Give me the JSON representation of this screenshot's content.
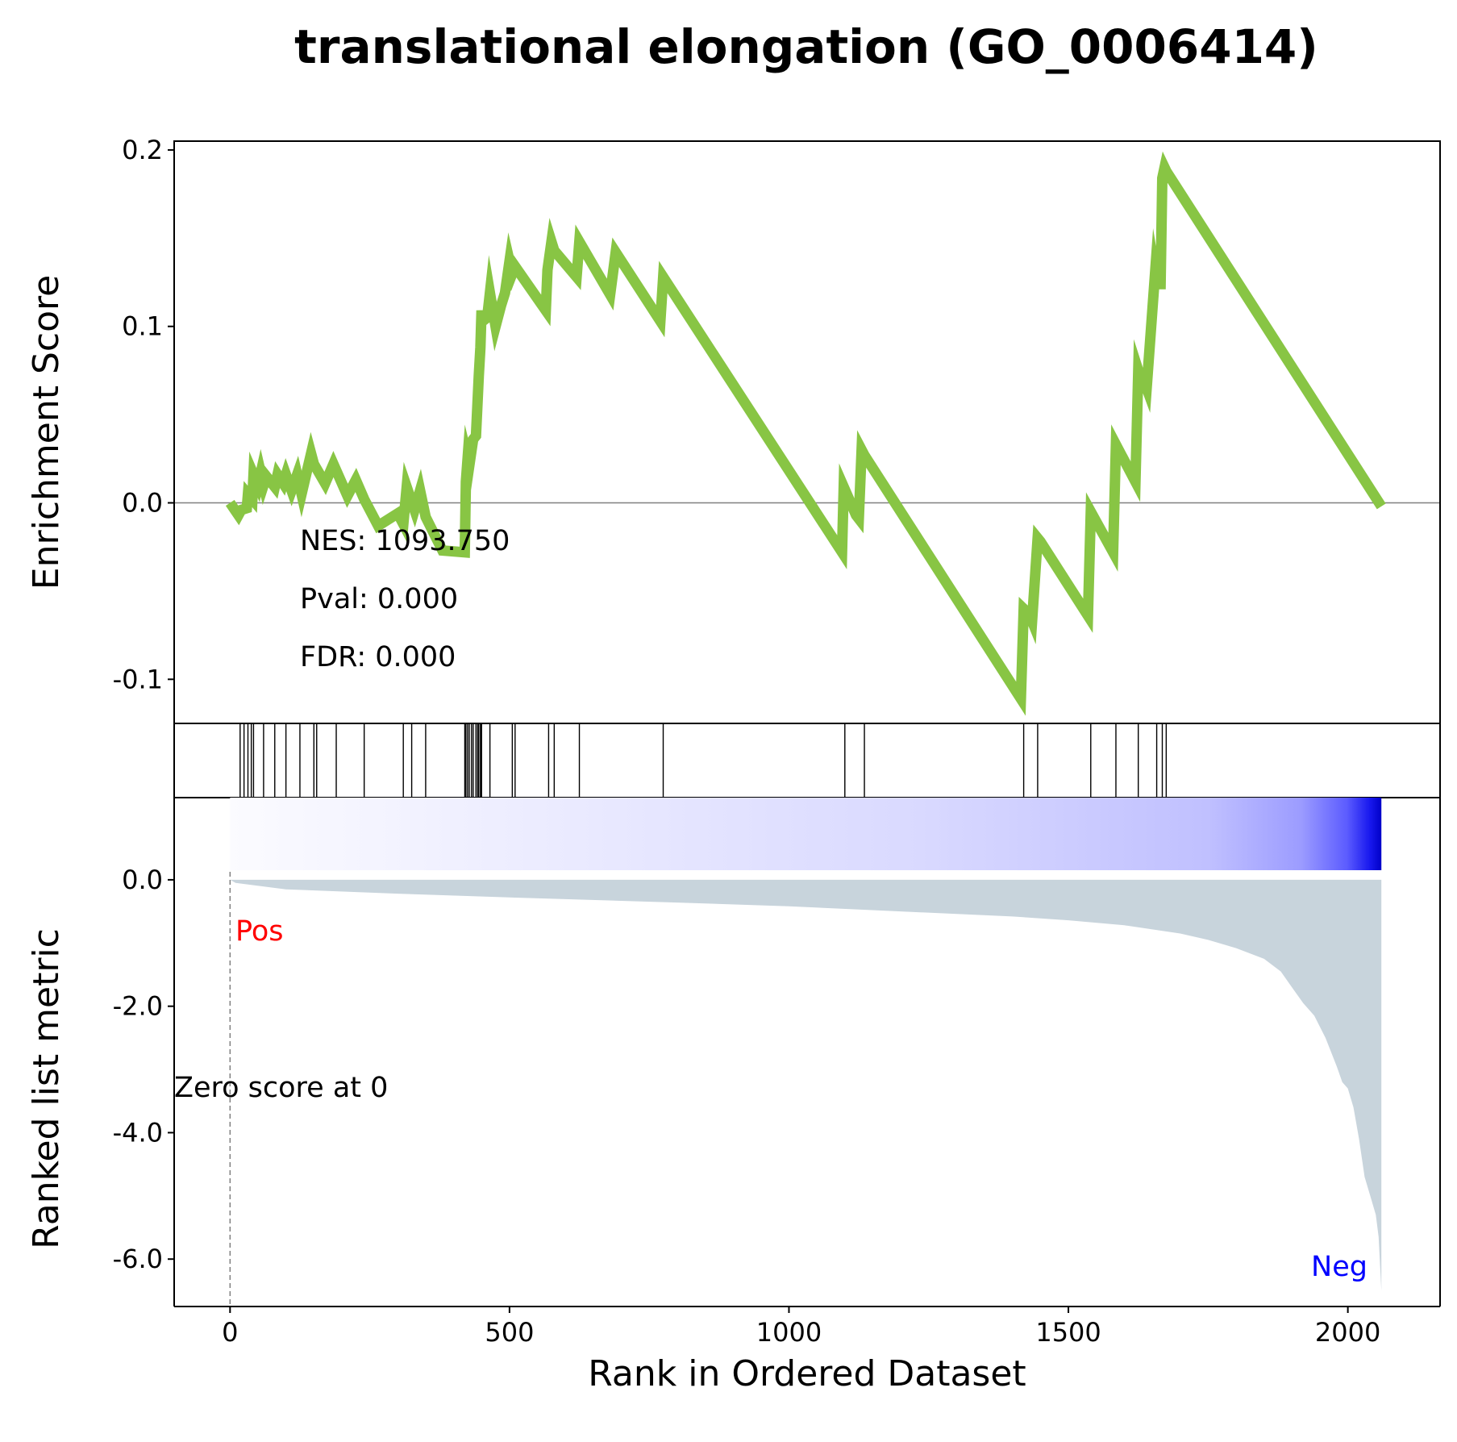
{
  "chart_data": {
    "type": "line",
    "title": "translational elongation (GO_0006414)",
    "xlabel": "Rank in Ordered Dataset",
    "top_panel": {
      "ylabel": "Enrichment Score",
      "ylim": [
        -0.125,
        0.205
      ],
      "yticks": [
        -0.1,
        0.0,
        0.1,
        0.2
      ],
      "ytick_labels": [
        "-0.1",
        "0.0",
        "0.1",
        "0.2"
      ],
      "series": [
        {
          "color": "#88c544",
          "x": [
            0,
            15,
            20,
            30,
            32,
            40,
            42,
            50,
            55,
            60,
            65,
            80,
            85,
            95,
            100,
            110,
            120,
            128,
            145,
            150,
            170,
            185,
            210,
            225,
            240,
            265,
            300,
            310,
            316,
            330,
            340,
            350,
            380,
            420,
            422,
            425,
            428,
            435,
            440,
            445,
            448,
            450,
            452,
            460,
            465,
            475,
            485,
            492,
            500,
            505,
            510,
            565,
            568,
            575,
            580,
            620,
            625,
            680,
            690,
            770,
            775,
            1095,
            1098,
            1120,
            1125,
            1130,
            1135,
            1415,
            1420,
            1430,
            1435,
            1445,
            1450,
            1535,
            1540,
            1580,
            1585,
            1620,
            1625,
            1628,
            1632,
            1640,
            1655,
            1658,
            1665,
            1668,
            1672,
            1675,
            2060
          ],
          "values": [
            0.0,
            -0.007,
            -0.004,
            -0.003,
            0.005,
            0.002,
            0.016,
            0.01,
            0.017,
            0.01,
            0.015,
            0.009,
            0.016,
            0.011,
            0.016,
            0.007,
            0.016,
            0.005,
            0.028,
            0.022,
            0.011,
            0.022,
            0.004,
            0.013,
            0.002,
            -0.013,
            -0.006,
            -0.012,
            0.009,
            -0.004,
            0.007,
            -0.008,
            -0.027,
            -0.028,
            0.012,
            0.025,
            0.021,
            0.036,
            0.038,
            0.072,
            0.088,
            0.109,
            0.103,
            0.105,
            0.119,
            0.1,
            0.112,
            0.119,
            0.137,
            0.13,
            0.134,
            0.109,
            0.132,
            0.148,
            0.143,
            0.128,
            0.148,
            0.118,
            0.142,
            0.103,
            0.128,
            -0.028,
            0.009,
            -0.007,
            -0.009,
            0.03,
            0.027,
            -0.111,
            -0.06,
            -0.063,
            -0.067,
            -0.02,
            -0.022,
            -0.064,
            -0.005,
            -0.028,
            0.033,
            0.012,
            0.075,
            0.072,
            0.072,
            0.065,
            0.13,
            0.124,
            0.124,
            0.184,
            0.19,
            0.188,
            -0.002
          ]
        }
      ]
    },
    "hits": [
      18,
      25,
      32,
      38,
      42,
      60,
      80,
      100,
      125,
      150,
      155,
      190,
      240,
      310,
      325,
      350,
      420,
      422,
      425,
      428,
      432,
      435,
      440,
      443,
      445,
      448,
      450,
      465,
      505,
      510,
      570,
      580,
      625,
      775,
      1100,
      1135,
      1420,
      1445,
      1540,
      1585,
      1625,
      1658,
      1668,
      1675
    ],
    "bottom_panel": {
      "ylabel": "Ranked list metric",
      "yticks": [
        0.0,
        -2.0,
        -4.0,
        -6.0
      ],
      "ytick_labels": [
        "0.0",
        "-2.0",
        "-4.0",
        "-6.0"
      ],
      "ylim": [
        -6.75,
        1.3
      ],
      "metric_x": [
        0,
        10,
        100,
        300,
        500,
        800,
        1000,
        1200,
        1400,
        1500,
        1600,
        1700,
        1750,
        1800,
        1850,
        1880,
        1900,
        1920,
        1940,
        1960,
        1980,
        1990,
        2000,
        2010,
        2020,
        2030,
        2040,
        2050,
        2055,
        2060
      ],
      "metric_values": [
        0.0,
        -0.05,
        -0.15,
        -0.22,
        -0.28,
        -0.36,
        -0.42,
        -0.5,
        -0.58,
        -0.64,
        -0.72,
        -0.85,
        -0.95,
        -1.08,
        -1.25,
        -1.45,
        -1.7,
        -1.95,
        -2.15,
        -2.5,
        -2.95,
        -3.2,
        -3.3,
        -3.6,
        -4.1,
        -4.7,
        -5.0,
        -5.3,
        -5.65,
        -6.5
      ],
      "fill_color": "#c8d4dc",
      "pos_label": "Pos",
      "neg_label": "Neg",
      "zero_label": "Zero score at 0",
      "zero_rank": 0
    },
    "xlim": [
      -100,
      2165
    ],
    "xticks": [
      0,
      500,
      1000,
      1500,
      2000
    ],
    "xtick_labels": [
      "0",
      "500",
      "1000",
      "1500",
      "2000"
    ],
    "stats": {
      "nes": "NES: 1093.750",
      "pval": "Pval: 0.000",
      "fdr": "FDR: 0.000"
    }
  }
}
